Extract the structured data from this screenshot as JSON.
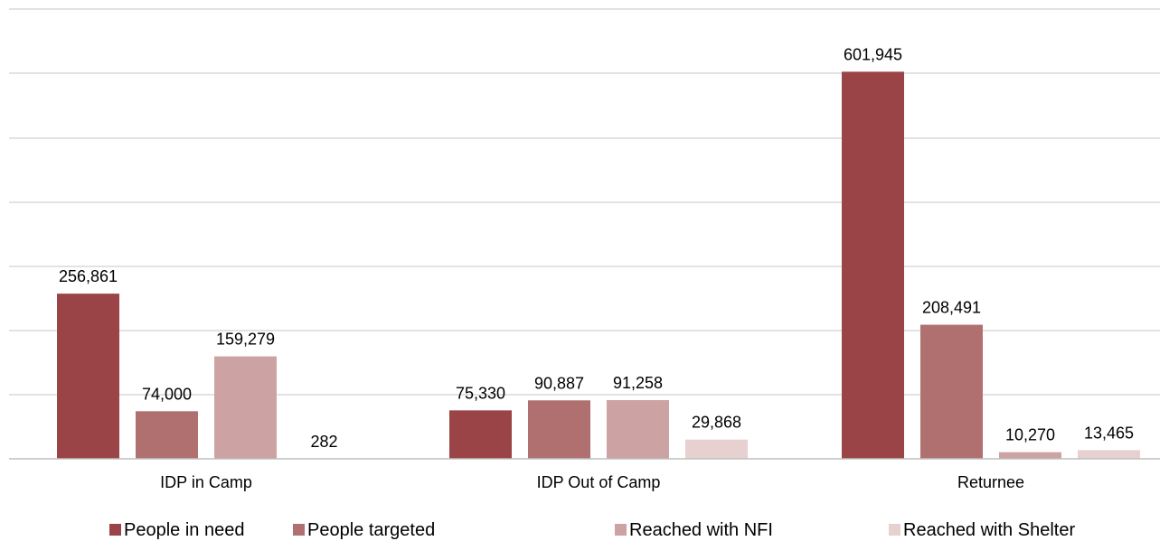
{
  "chart_data": {
    "type": "bar",
    "title": "",
    "xlabel": "",
    "ylabel": "",
    "categories": [
      "IDP in Camp",
      "IDP Out of Camp",
      "Returnee"
    ],
    "series": [
      {
        "name": "People in need",
        "color": "#9a4447",
        "values": [
          256861,
          75330,
          601945
        ],
        "labels": [
          "256,861",
          "75,330",
          "601,945"
        ]
      },
      {
        "name": "People targeted",
        "color": "#b17070",
        "values": [
          74000,
          90887,
          208491
        ],
        "labels": [
          "74,000",
          "90,887",
          "208,491"
        ]
      },
      {
        "name": "Reached with NFI",
        "color": "#cca2a2",
        "values": [
          159279,
          91258,
          10270
        ],
        "labels": [
          "159,279",
          "91,258",
          "10,270"
        ]
      },
      {
        "name": "Reached with Shelter",
        "color": "#e6d0d0",
        "values": [
          282,
          29868,
          13465
        ],
        "labels": [
          "282",
          "29,868",
          "13,465"
        ]
      }
    ],
    "grid": true,
    "legend": "bottom"
  }
}
